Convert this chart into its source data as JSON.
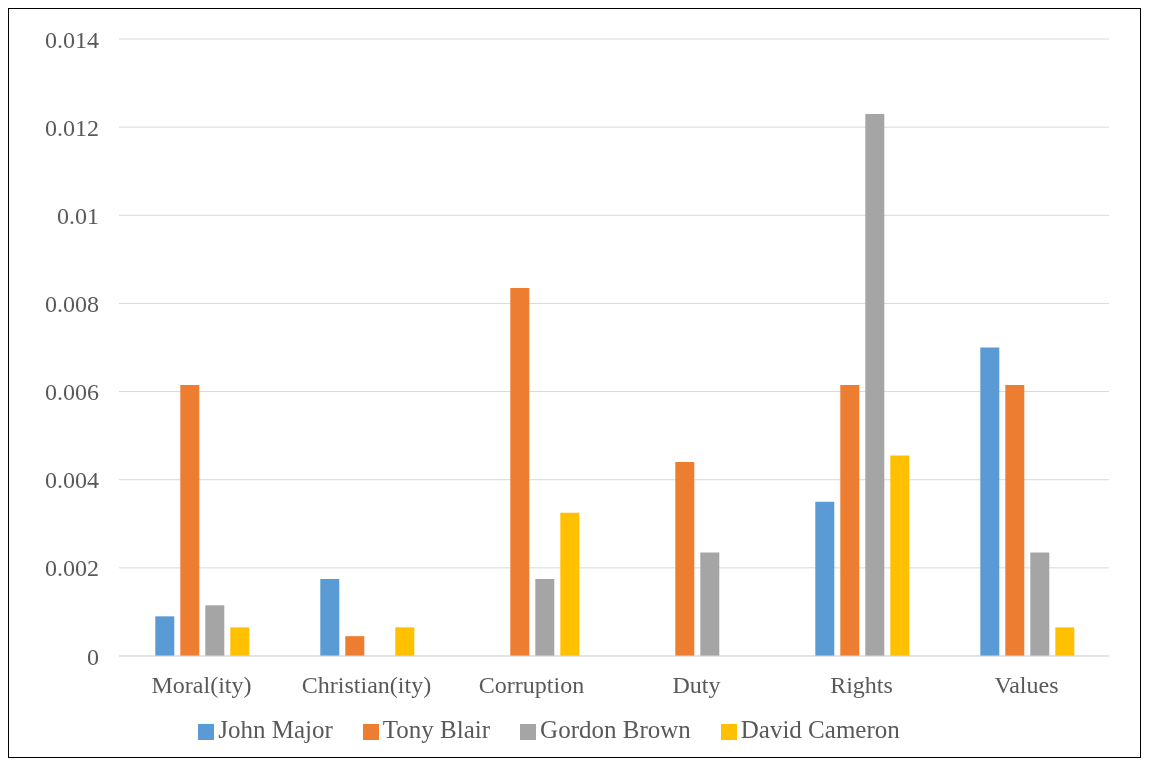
{
  "chart_data": {
    "type": "bar",
    "categories": [
      "Moral(ity)",
      "Christian(ity)",
      "Corruption",
      "Duty",
      "Rights",
      "Values"
    ],
    "series": [
      {
        "name": "John Major",
        "color": "#5b9bd5",
        "values": [
          0.0009,
          0.00175,
          0,
          0,
          0.0035,
          0.007
        ]
      },
      {
        "name": "Tony Blair",
        "color": "#ed7d31",
        "values": [
          0.00615,
          0.00045,
          0.00835,
          0.0044,
          0.00615,
          0.00615
        ]
      },
      {
        "name": "Gordon Brown",
        "color": "#a5a5a5",
        "values": [
          0.00115,
          0,
          0.00175,
          0.00235,
          0.0123,
          0.00235
        ]
      },
      {
        "name": "David Cameron",
        "color": "#ffc000",
        "values": [
          0.00065,
          0.00065,
          0.00325,
          0,
          0.00455,
          0.00065
        ]
      }
    ],
    "ylim": [
      0,
      0.014
    ],
    "yticks": [
      0,
      0.002,
      0.004,
      0.006,
      0.008,
      0.01,
      0.012,
      0.014
    ],
    "grid": "y",
    "legend": "bottom"
  }
}
